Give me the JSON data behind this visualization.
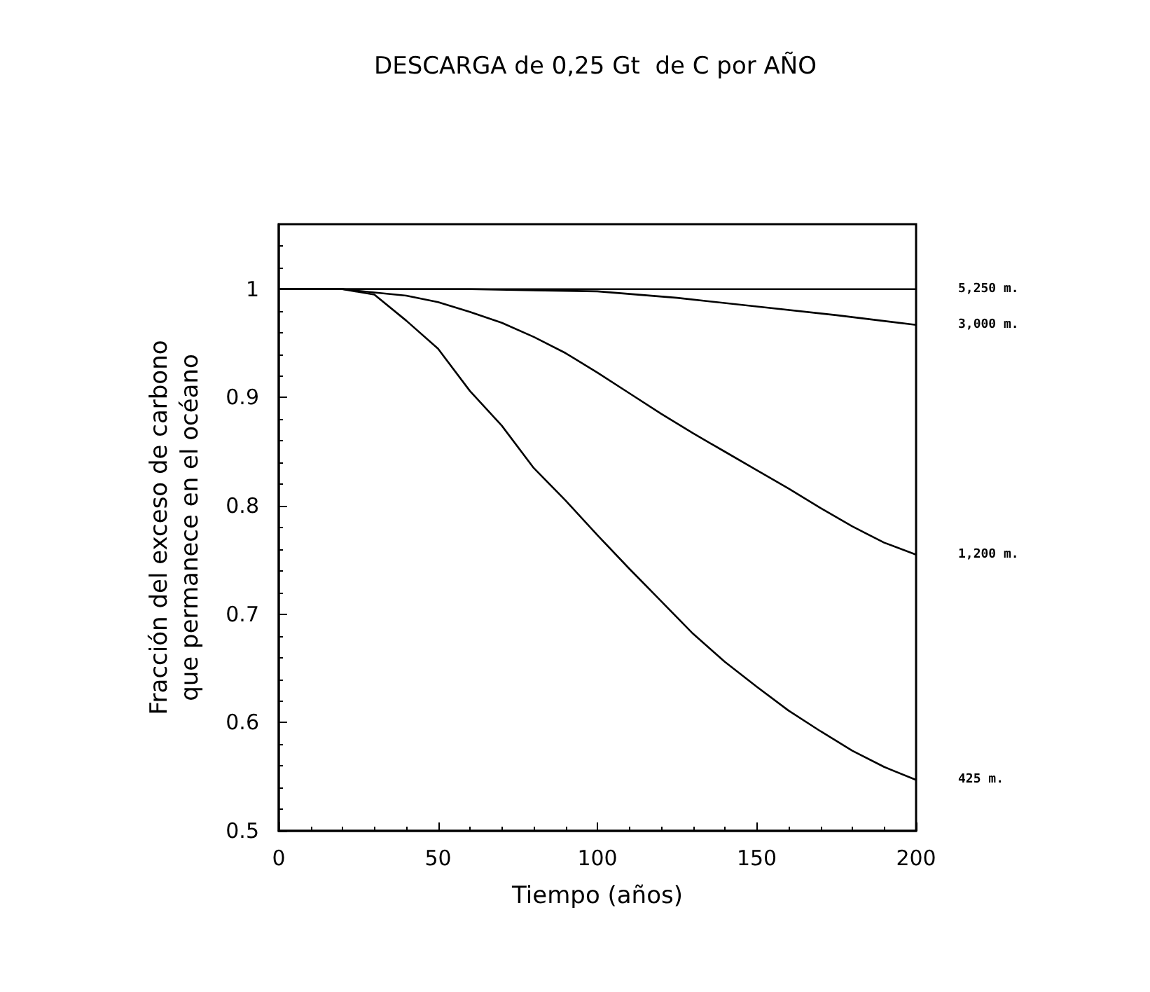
{
  "chart_data": {
    "type": "line",
    "title": "DESCARGA de 0,25 Gt  de C por AÑO",
    "xlabel": "Tiempo (años)",
    "ylabel": "Fracción del exceso de carbono\nque permanece en el océano",
    "xlim": [
      0,
      200
    ],
    "xticks": [
      0,
      50,
      100,
      150,
      200
    ],
    "ylim": [
      0.5,
      1.06
    ],
    "yticks": [
      0.5,
      0.6,
      0.7,
      0.8,
      0.9,
      1
    ],
    "grid": false,
    "legend": false,
    "marker": "none",
    "line_style": "solid",
    "series": [
      {
        "name": "5,250 m.",
        "color": "#000000",
        "x": [
          0,
          50,
          100,
          150,
          200
        ],
        "values": [
          1,
          1,
          1,
          1,
          1
        ]
      },
      {
        "name": "3,000 m.",
        "color": "#000000",
        "x": [
          0,
          20,
          60,
          100,
          125,
          150,
          175,
          200
        ],
        "values": [
          1,
          1,
          1,
          0.998,
          0.992,
          0.984,
          0.976,
          0.967
        ]
      },
      {
        "name": "1,200 m.",
        "color": "#000000",
        "x": [
          0,
          20,
          30,
          40,
          50,
          60,
          70,
          80,
          90,
          100,
          110,
          120,
          130,
          140,
          150,
          160,
          170,
          180,
          190,
          200
        ],
        "values": [
          1,
          1,
          0.997,
          0.994,
          0.988,
          0.979,
          0.969,
          0.956,
          0.941,
          0.923,
          0.904,
          0.885,
          0.867,
          0.85,
          0.833,
          0.816,
          0.798,
          0.781,
          0.766,
          0.755
        ]
      },
      {
        "name": "425 m.",
        "color": "#000000",
        "x": [
          0,
          20,
          30,
          40,
          50,
          60,
          70,
          80,
          90,
          100,
          110,
          120,
          130,
          140,
          150,
          160,
          170,
          180,
          190,
          200
        ],
        "values": [
          1,
          1,
          0.995,
          0.971,
          0.945,
          0.906,
          0.874,
          0.835,
          0.805,
          0.773,
          0.742,
          0.712,
          0.682,
          0.656,
          0.633,
          0.611,
          0.592,
          0.574,
          0.559,
          0.547
        ]
      }
    ]
  }
}
